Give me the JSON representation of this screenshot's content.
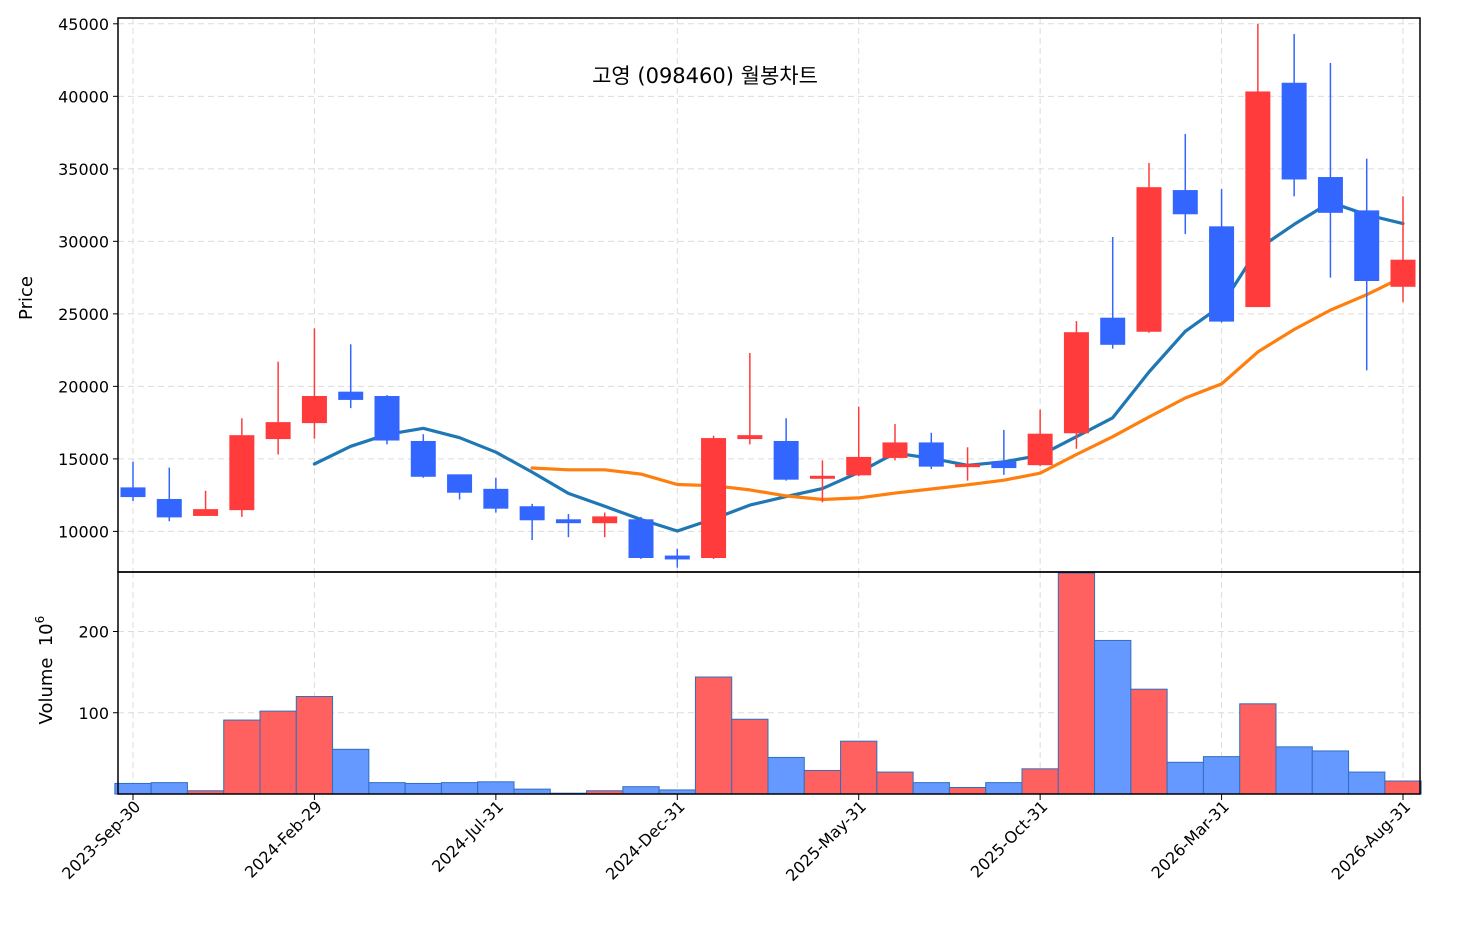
{
  "chart_data": [
    {
      "type": "candlestick",
      "title": "고영 (098460) 월봉차트",
      "ylabel": "Price",
      "ylim": [
        7200,
        45400
      ],
      "yticks": [
        10000,
        15000,
        20000,
        25000,
        30000,
        35000,
        40000,
        45000
      ],
      "up_color": "#ff3b3b",
      "down_color": "#3366ff",
      "x_tick_labels": [
        "2023-Sep-30",
        "2024-Feb-29",
        "2024-Jul-31",
        "2024-Dec-31",
        "2025-May-31",
        "2025-Oct-31",
        "2026-Mar-31",
        "2026-Aug-31"
      ],
      "x_tick_indices": [
        0,
        5,
        10,
        15,
        20,
        25,
        30,
        35
      ],
      "grid": true,
      "candles": [
        {
          "date": "2023-09-30",
          "open": 13000,
          "high": 14800,
          "low": 12100,
          "close": 12400
        },
        {
          "date": "2023-10-31",
          "open": 12200,
          "high": 14400,
          "low": 10700,
          "close": 11000
        },
        {
          "date": "2023-11-30",
          "open": 11100,
          "high": 12800,
          "low": 11100,
          "close": 11500
        },
        {
          "date": "2023-12-31",
          "open": 11500,
          "high": 17800,
          "low": 11000,
          "close": 16600
        },
        {
          "date": "2024-01-31",
          "open": 16400,
          "high": 21700,
          "low": 15300,
          "close": 17500
        },
        {
          "date": "2024-02-29",
          "open": 17500,
          "high": 24000,
          "low": 16400,
          "close": 19300
        },
        {
          "date": "2024-03-31",
          "open": 19600,
          "high": 22900,
          "low": 18500,
          "close": 19100
        },
        {
          "date": "2024-04-30",
          "open": 19300,
          "high": 19400,
          "low": 16000,
          "close": 16300
        },
        {
          "date": "2024-05-31",
          "open": 16200,
          "high": 16700,
          "low": 13700,
          "close": 13800
        },
        {
          "date": "2024-06-30",
          "open": 13900,
          "high": 13900,
          "low": 12200,
          "close": 12700
        },
        {
          "date": "2024-07-31",
          "open": 12900,
          "high": 13700,
          "low": 11300,
          "close": 11600
        },
        {
          "date": "2024-08-31",
          "open": 11700,
          "high": 11900,
          "low": 9400,
          "close": 10800
        },
        {
          "date": "2024-09-30",
          "open": 10800,
          "high": 11200,
          "low": 9600,
          "close": 10600
        },
        {
          "date": "2024-10-31",
          "open": 10600,
          "high": 11300,
          "low": 9600,
          "close": 11000
        },
        {
          "date": "2024-11-30",
          "open": 10800,
          "high": 11000,
          "low": 8100,
          "close": 8200
        },
        {
          "date": "2024-12-31",
          "open": 8300,
          "high": 8800,
          "low": 7500,
          "close": 8100
        },
        {
          "date": "2025-01-31",
          "open": 8200,
          "high": 16600,
          "low": 8100,
          "close": 16400
        },
        {
          "date": "2025-02-28",
          "open": 16400,
          "high": 22300,
          "low": 16000,
          "close": 16600
        },
        {
          "date": "2025-03-31",
          "open": 16200,
          "high": 17800,
          "low": 13500,
          "close": 13600
        },
        {
          "date": "2025-04-30",
          "open": 13700,
          "high": 14900,
          "low": 12000,
          "close": 13800
        },
        {
          "date": "2025-05-31",
          "open": 13900,
          "high": 18600,
          "low": 13800,
          "close": 15100
        },
        {
          "date": "2025-06-30",
          "open": 15100,
          "high": 17400,
          "low": 14900,
          "close": 16100
        },
        {
          "date": "2025-07-31",
          "open": 16100,
          "high": 16800,
          "low": 14300,
          "close": 14500
        },
        {
          "date": "2025-08-31",
          "open": 14500,
          "high": 15800,
          "low": 13500,
          "close": 14600
        },
        {
          "date": "2025-09-30",
          "open": 14800,
          "high": 17000,
          "low": 13900,
          "close": 14400
        },
        {
          "date": "2025-10-31",
          "open": 14600,
          "high": 18400,
          "low": 14500,
          "close": 16700
        },
        {
          "date": "2025-11-30",
          "open": 16800,
          "high": 24500,
          "low": 15700,
          "close": 23700
        },
        {
          "date": "2025-12-31",
          "open": 24700,
          "high": 30300,
          "low": 22600,
          "close": 22900
        },
        {
          "date": "2026-01-31",
          "open": 23800,
          "high": 35400,
          "low": 23700,
          "close": 33700
        },
        {
          "date": "2026-02-28",
          "open": 33500,
          "high": 37400,
          "low": 30500,
          "close": 31900
        },
        {
          "date": "2026-03-31",
          "open": 31000,
          "high": 33600,
          "low": 24400,
          "close": 24500
        },
        {
          "date": "2026-04-30",
          "open": 25500,
          "high": 45000,
          "low": 25500,
          "close": 40300
        },
        {
          "date": "2026-05-31",
          "open": 40900,
          "high": 44300,
          "low": 33100,
          "close": 34300
        },
        {
          "date": "2026-06-30",
          "open": 34400,
          "high": 42300,
          "low": 27500,
          "close": 32000
        },
        {
          "date": "2026-07-31",
          "open": 32100,
          "high": 35700,
          "low": 21100,
          "close": 27300
        },
        {
          "date": "2026-08-31",
          "open": 26900,
          "high": 33100,
          "low": 25800,
          "close": 28700
        }
      ],
      "moving_averages": [
        {
          "color": "#1f77b4",
          "values": [
            null,
            null,
            null,
            null,
            null,
            14650,
            15870,
            16690,
            17110,
            16460,
            15460,
            14090,
            12620,
            11730,
            10820,
            10030,
            10860,
            11810,
            12400,
            12950,
            14070,
            15400,
            15040,
            14560,
            14800,
            15240,
            16530,
            17830,
            20990,
            23800,
            25580,
            29470,
            31170,
            32690,
            31830,
            31220
          ]
        },
        {
          "color": "#ff7f0e",
          "values": [
            null,
            null,
            null,
            null,
            null,
            null,
            null,
            null,
            null,
            null,
            null,
            14370,
            14250,
            14250,
            13950,
            13230,
            13150,
            12860,
            12450,
            12200,
            12310,
            12640,
            12920,
            13210,
            13530,
            14010,
            15300,
            16530,
            17890,
            19200,
            20170,
            22380,
            23920,
            25260,
            26320,
            27550
          ]
        }
      ]
    },
    {
      "type": "bar",
      "ylabel": "Volume",
      "ylabel_exponent": "6",
      "yticks": [
        100,
        200
      ],
      "ylim": [
        0,
        272
      ],
      "up_color": "#ff6060",
      "down_color": "#6699ff",
      "values": [
        13,
        14,
        4,
        91,
        102,
        120,
        55,
        14,
        13,
        14,
        15,
        6,
        1,
        4,
        9,
        5,
        144,
        92,
        45,
        29,
        65,
        27,
        14,
        8,
        14,
        31,
        272,
        189,
        129,
        39,
        46,
        111,
        58,
        53,
        27,
        16
      ]
    }
  ]
}
